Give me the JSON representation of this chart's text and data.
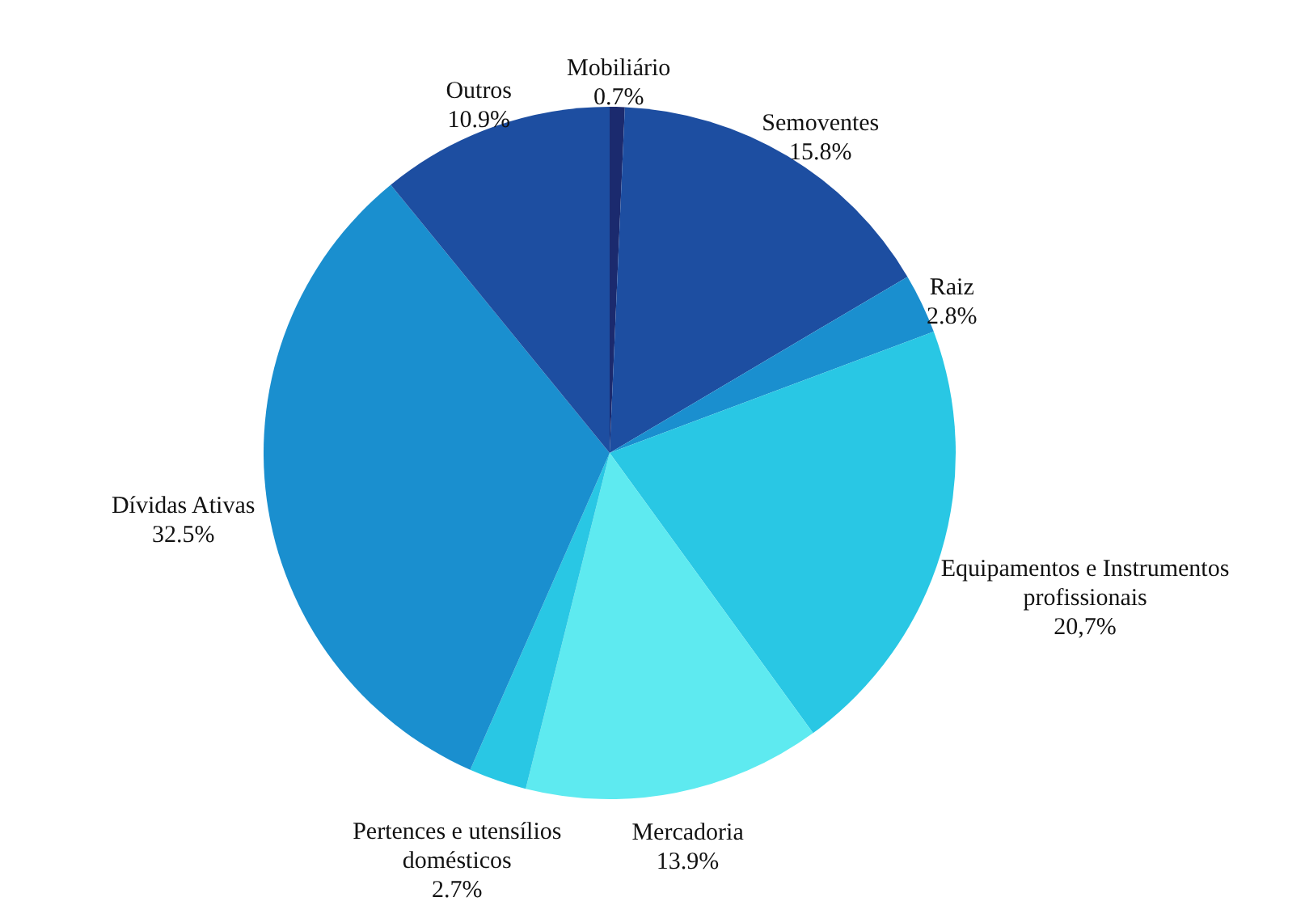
{
  "chart_data": {
    "type": "pie",
    "categories": [
      "Mobiliário",
      "Semoventes",
      "Raiz",
      "Equipamentos e Instrumentos profissionais",
      "Mercadoria",
      "Pertences e utensílios domésticos",
      "Dívidas Ativas",
      "Outros"
    ],
    "values": [
      0.7,
      15.8,
      2.8,
      20.7,
      13.9,
      2.7,
      32.5,
      10.9
    ],
    "value_labels": [
      "0.7%",
      "15.8%",
      "2.8%",
      "20,7%",
      "13.9%",
      "2.7%",
      "32.5%",
      "10.9%"
    ],
    "colors": [
      "#1b2a6e",
      "#1d4ea1",
      "#1a8fcf",
      "#29c7e4",
      "#5eeaf0",
      "#29c7e4",
      "#1a8fcf",
      "#1d4ea1"
    ]
  }
}
